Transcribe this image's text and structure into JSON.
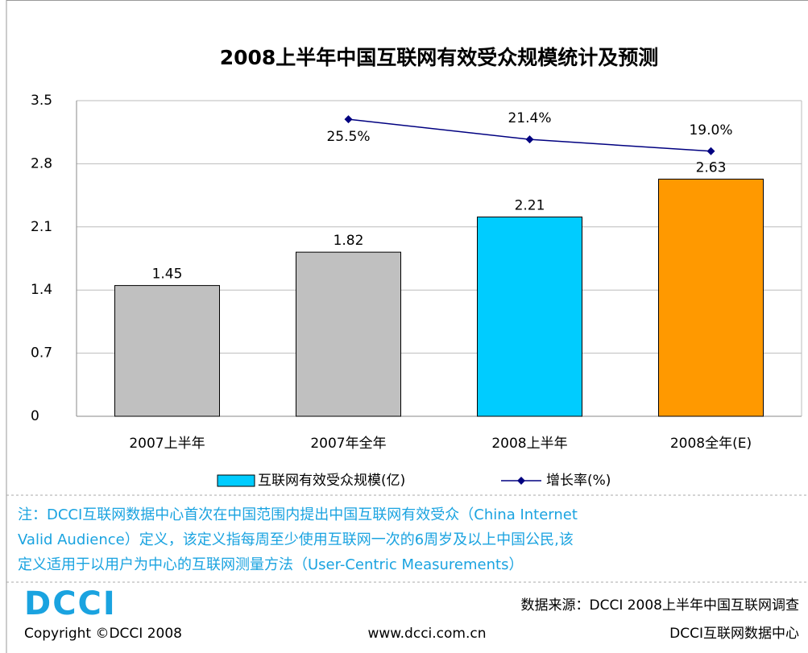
{
  "chart_data": {
    "type": "bar",
    "title": "2008上半年中国互联网有效受众规模统计及预测",
    "categories": [
      "2007上半年",
      "2007年全年",
      "2008上半年",
      "2008全年(E)"
    ],
    "series": [
      {
        "name": "互联网有效受众规模(亿)",
        "color": "#00ccff",
        "colors": [
          "#c0c0c0",
          "#c0c0c0",
          "#00ccff",
          "#ff9900"
        ],
        "values": [
          1.45,
          1.82,
          2.21,
          2.63
        ]
      },
      {
        "name": "增长率(%)",
        "type": "line",
        "axis": "y2",
        "color": "#000080",
        "values": [
          null,
          25.5,
          21.4,
          19.0
        ],
        "value_labels": [
          null,
          "25.5%",
          "21.4%",
          "19.0%"
        ]
      }
    ],
    "ylim": [
      0,
      3.5
    ],
    "yticks": [
      0,
      0.7,
      1.4,
      2.1,
      2.8,
      3.5
    ],
    "y2lim": [
      -35,
      29.3
    ],
    "grid": true,
    "legend": "bottom"
  },
  "note": [
    "注：DCCI互联网数据中心首次在中国范围内提出中国互联网有效受众（China Internet",
    "Valid Audience）定义，该定义指每周至少使用互联网一次的6周岁及以上中国公民,该",
    "定义适用于以用户为中心的互联网测量方法（User-Centric Measurements）"
  ],
  "footer": {
    "logo": "DCCI",
    "copyright": "Copyright ©DCCI 2008",
    "source": "数据来源：DCCI  2008上半年中国互联网调查",
    "url": "www.dcci.com.cn",
    "center": "DCCI互联网数据中心"
  }
}
